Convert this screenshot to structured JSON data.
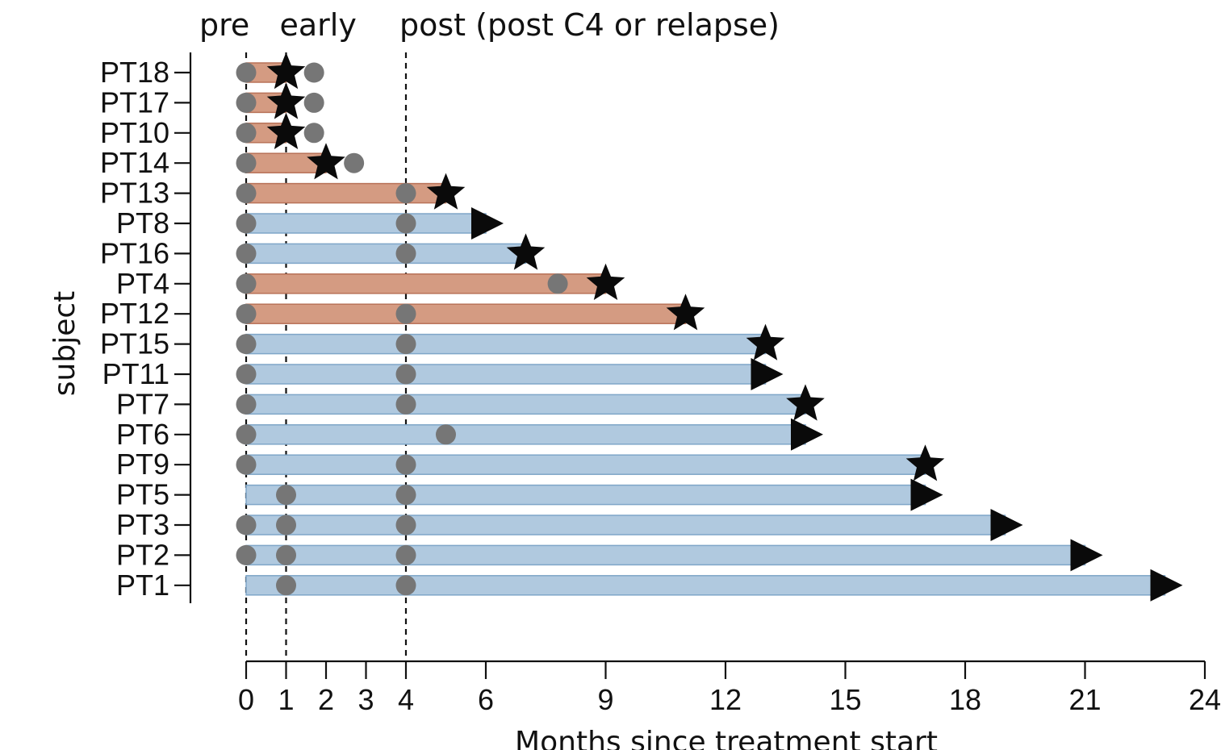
{
  "chart_data": {
    "type": "swimmer",
    "xlabel": "Months since treatment start",
    "ylabel": "subject",
    "xlim": [
      0,
      24
    ],
    "xticks": [
      0,
      1,
      2,
      3,
      4,
      6,
      9,
      12,
      15,
      18,
      21,
      24
    ],
    "phase_labels": [
      {
        "text": "pre",
        "x": 0
      },
      {
        "text": "early",
        "x": 1
      },
      {
        "text": "post (post C4 or relapse)",
        "x": 4
      }
    ],
    "phase_lines": [
      0,
      1,
      4
    ],
    "colors": {
      "orange_bar": "#d49b82",
      "orange_edge": "#b87258",
      "blue_bar": "#b0c9df",
      "blue_edge": "#7fa6c8",
      "sample_dot": "#767676",
      "marker": "#0a0a0a"
    },
    "subjects": [
      {
        "id": "PT18",
        "color": "orange",
        "end": 1.0,
        "end_marker": "star",
        "samples": [
          0,
          1.7
        ]
      },
      {
        "id": "PT17",
        "color": "orange",
        "end": 1.0,
        "end_marker": "star",
        "samples": [
          0,
          1.7
        ]
      },
      {
        "id": "PT10",
        "color": "orange",
        "end": 1.0,
        "end_marker": "star",
        "samples": [
          0,
          1.7
        ]
      },
      {
        "id": "PT14",
        "color": "orange",
        "end": 2.0,
        "end_marker": "star",
        "samples": [
          0,
          2.7
        ]
      },
      {
        "id": "PT13",
        "color": "orange",
        "end": 5.0,
        "end_marker": "star",
        "samples": [
          0,
          4
        ]
      },
      {
        "id": "PT8",
        "color": "blue",
        "end": 6.0,
        "end_marker": "arrow",
        "samples": [
          0,
          4
        ]
      },
      {
        "id": "PT16",
        "color": "blue",
        "end": 7.0,
        "end_marker": "star",
        "samples": [
          0,
          4
        ]
      },
      {
        "id": "PT4",
        "color": "orange",
        "end": 9.0,
        "end_marker": "star",
        "samples": [
          0,
          7.8
        ]
      },
      {
        "id": "PT12",
        "color": "orange",
        "end": 11.0,
        "end_marker": "star",
        "samples": [
          0,
          4
        ]
      },
      {
        "id": "PT15",
        "color": "blue",
        "end": 13.0,
        "end_marker": "star",
        "samples": [
          0,
          4
        ]
      },
      {
        "id": "PT11",
        "color": "blue",
        "end": 13.0,
        "end_marker": "arrow",
        "samples": [
          0,
          4
        ]
      },
      {
        "id": "PT7",
        "color": "blue",
        "end": 14.0,
        "end_marker": "star",
        "samples": [
          0,
          4
        ]
      },
      {
        "id": "PT6",
        "color": "blue",
        "end": 14.0,
        "end_marker": "arrow",
        "samples": [
          0,
          5
        ]
      },
      {
        "id": "PT9",
        "color": "blue",
        "end": 17.0,
        "end_marker": "star",
        "samples": [
          0,
          4
        ]
      },
      {
        "id": "PT5",
        "color": "blue",
        "end": 17.0,
        "end_marker": "arrow",
        "samples": [
          1,
          4
        ]
      },
      {
        "id": "PT3",
        "color": "blue",
        "end": 19.0,
        "end_marker": "arrow",
        "samples": [
          0,
          1,
          4
        ]
      },
      {
        "id": "PT2",
        "color": "blue",
        "end": 21.0,
        "end_marker": "arrow",
        "samples": [
          0,
          1,
          4
        ]
      },
      {
        "id": "PT1",
        "color": "blue",
        "end": 23.0,
        "end_marker": "arrow",
        "samples": [
          1,
          4
        ]
      }
    ]
  }
}
